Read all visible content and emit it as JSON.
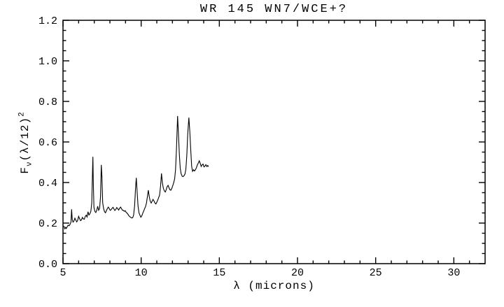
{
  "chart_data": {
    "type": "line",
    "title": "WR 145 WN7/WCE+?",
    "xlabel": "λ (microns)",
    "ylabel": {
      "base": "F",
      "sub": "ν",
      "mid": "(λ/12)",
      "sup": "2"
    },
    "xlim": [
      5,
      32
    ],
    "ylim": [
      0,
      1.2
    ],
    "x_major_ticks": [
      5,
      10,
      15,
      20,
      25,
      30
    ],
    "x_minor_step": 1,
    "y_major_ticks": [
      0.0,
      0.2,
      0.4,
      0.6,
      0.8,
      1.0,
      1.2
    ],
    "y_minor_step": 0.05,
    "y_tick_decimals": 1,
    "grid": false,
    "legend_position": "none",
    "axis_color": "#000000",
    "line_color": "#000000",
    "background_color": "#ffffff",
    "series": [
      {
        "name": "WR 145 spectrum",
        "x": [
          5.06,
          5.11,
          5.16,
          5.21,
          5.27,
          5.33,
          5.39,
          5.45,
          5.51,
          5.55,
          5.59,
          5.64,
          5.7,
          5.76,
          5.82,
          5.88,
          5.94,
          6.0,
          6.06,
          6.12,
          6.18,
          6.24,
          6.3,
          6.36,
          6.42,
          6.48,
          6.54,
          6.6,
          6.66,
          6.72,
          6.78,
          6.84,
          6.88,
          6.91,
          6.94,
          6.98,
          7.04,
          7.1,
          7.16,
          7.22,
          7.28,
          7.34,
          7.4,
          7.45,
          7.49,
          7.54,
          7.6,
          7.66,
          7.72,
          7.78,
          7.84,
          7.9,
          7.96,
          8.02,
          8.08,
          8.14,
          8.2,
          8.26,
          8.32,
          8.38,
          8.44,
          8.5,
          8.56,
          8.62,
          8.68,
          8.74,
          8.8,
          8.86,
          8.92,
          8.98,
          9.04,
          9.1,
          9.16,
          9.22,
          9.28,
          9.34,
          9.4,
          9.46,
          9.52,
          9.58,
          9.64,
          9.69,
          9.74,
          9.8,
          9.86,
          9.92,
          9.98,
          10.04,
          10.1,
          10.16,
          10.22,
          10.28,
          10.34,
          10.4,
          10.46,
          10.52,
          10.58,
          10.64,
          10.7,
          10.76,
          10.82,
          10.88,
          10.94,
          11.0,
          11.06,
          11.12,
          11.18,
          11.24,
          11.3,
          11.36,
          11.42,
          11.48,
          11.54,
          11.6,
          11.66,
          11.72,
          11.78,
          11.84,
          11.9,
          11.96,
          12.02,
          12.08,
          12.14,
          12.2,
          12.26,
          12.33,
          12.38,
          12.44,
          12.5,
          12.56,
          12.62,
          12.68,
          12.74,
          12.8,
          12.86,
          12.92,
          12.98,
          13.05,
          13.11,
          13.17,
          13.23,
          13.29,
          13.35,
          13.41,
          13.47,
          13.53,
          13.59,
          13.65,
          13.72,
          13.78,
          13.84,
          13.9,
          13.96,
          14.02,
          14.08,
          14.14,
          14.2,
          14.26,
          14.31
        ],
        "y": [
          0.186,
          0.172,
          0.179,
          0.173,
          0.182,
          0.19,
          0.187,
          0.194,
          0.205,
          0.268,
          0.218,
          0.205,
          0.21,
          0.224,
          0.214,
          0.206,
          0.214,
          0.233,
          0.222,
          0.212,
          0.216,
          0.228,
          0.221,
          0.219,
          0.232,
          0.239,
          0.23,
          0.256,
          0.24,
          0.246,
          0.258,
          0.3,
          0.43,
          0.527,
          0.4,
          0.278,
          0.257,
          0.252,
          0.263,
          0.283,
          0.263,
          0.272,
          0.33,
          0.487,
          0.43,
          0.3,
          0.27,
          0.256,
          0.251,
          0.262,
          0.272,
          0.279,
          0.271,
          0.263,
          0.266,
          0.273,
          0.278,
          0.269,
          0.262,
          0.268,
          0.277,
          0.271,
          0.264,
          0.272,
          0.279,
          0.272,
          0.263,
          0.263,
          0.258,
          0.261,
          0.253,
          0.249,
          0.243,
          0.236,
          0.231,
          0.228,
          0.225,
          0.227,
          0.24,
          0.285,
          0.37,
          0.423,
          0.355,
          0.285,
          0.251,
          0.239,
          0.229,
          0.236,
          0.248,
          0.259,
          0.271,
          0.281,
          0.3,
          0.331,
          0.362,
          0.329,
          0.308,
          0.299,
          0.308,
          0.317,
          0.309,
          0.299,
          0.294,
          0.303,
          0.313,
          0.326,
          0.338,
          0.383,
          0.445,
          0.398,
          0.371,
          0.359,
          0.353,
          0.364,
          0.379,
          0.386,
          0.374,
          0.364,
          0.362,
          0.371,
          0.384,
          0.399,
          0.418,
          0.465,
          0.565,
          0.728,
          0.65,
          0.54,
          0.47,
          0.443,
          0.431,
          0.429,
          0.434,
          0.441,
          0.465,
          0.535,
          0.64,
          0.72,
          0.655,
          0.56,
          0.48,
          0.455,
          0.463,
          0.457,
          0.463,
          0.472,
          0.486,
          0.495,
          0.507,
          0.494,
          0.479,
          0.488,
          0.491,
          0.477,
          0.481,
          0.488,
          0.479,
          0.484,
          0.478
        ]
      }
    ]
  }
}
